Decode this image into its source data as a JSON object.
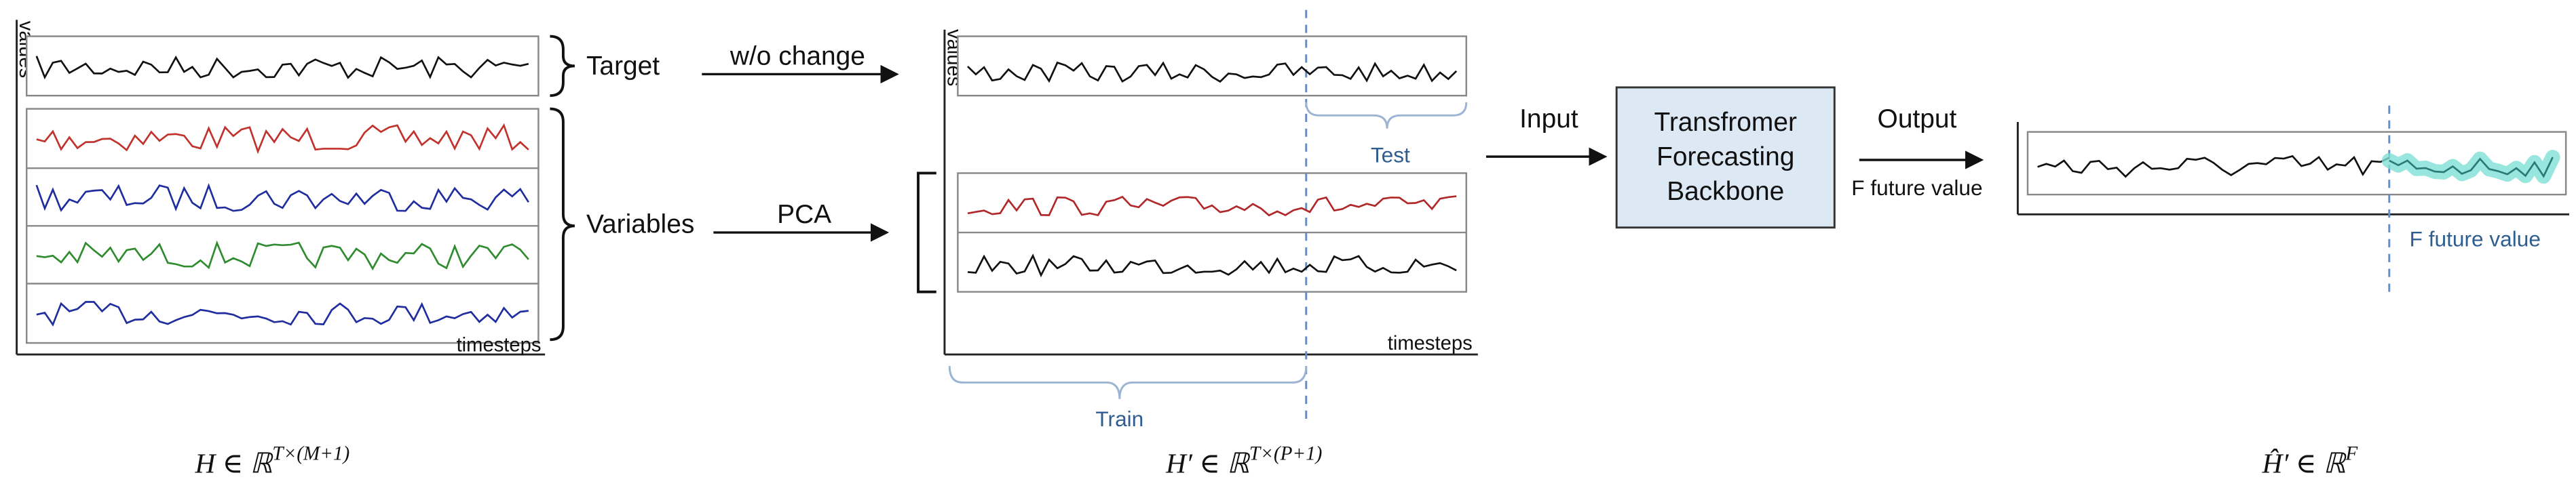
{
  "left": {
    "y_axis": "values",
    "x_axis": "timesteps",
    "target": "Target",
    "variables": "Variables",
    "formula": {
      "base": "H ∈ ℝ",
      "sup": "T×(M+1)"
    }
  },
  "arrows": {
    "unchanged": "w/o change",
    "pca": "PCA",
    "input": "Input",
    "output": "Output",
    "output_note": "F future value"
  },
  "middle": {
    "y_axis": "values",
    "x_axis": "timesteps",
    "test": "Test",
    "train": "Train",
    "formula": {
      "base": "H′ ∈ ℝ",
      "sup": "T×(P+1)"
    }
  },
  "backbone": {
    "lines": [
      "Transfromer",
      "Forecasting",
      "Backbone"
    ]
  },
  "right": {
    "future": "F future value",
    "formula": {
      "base": "Ĥ′ ∈ ℝ",
      "sup": "F"
    }
  }
}
